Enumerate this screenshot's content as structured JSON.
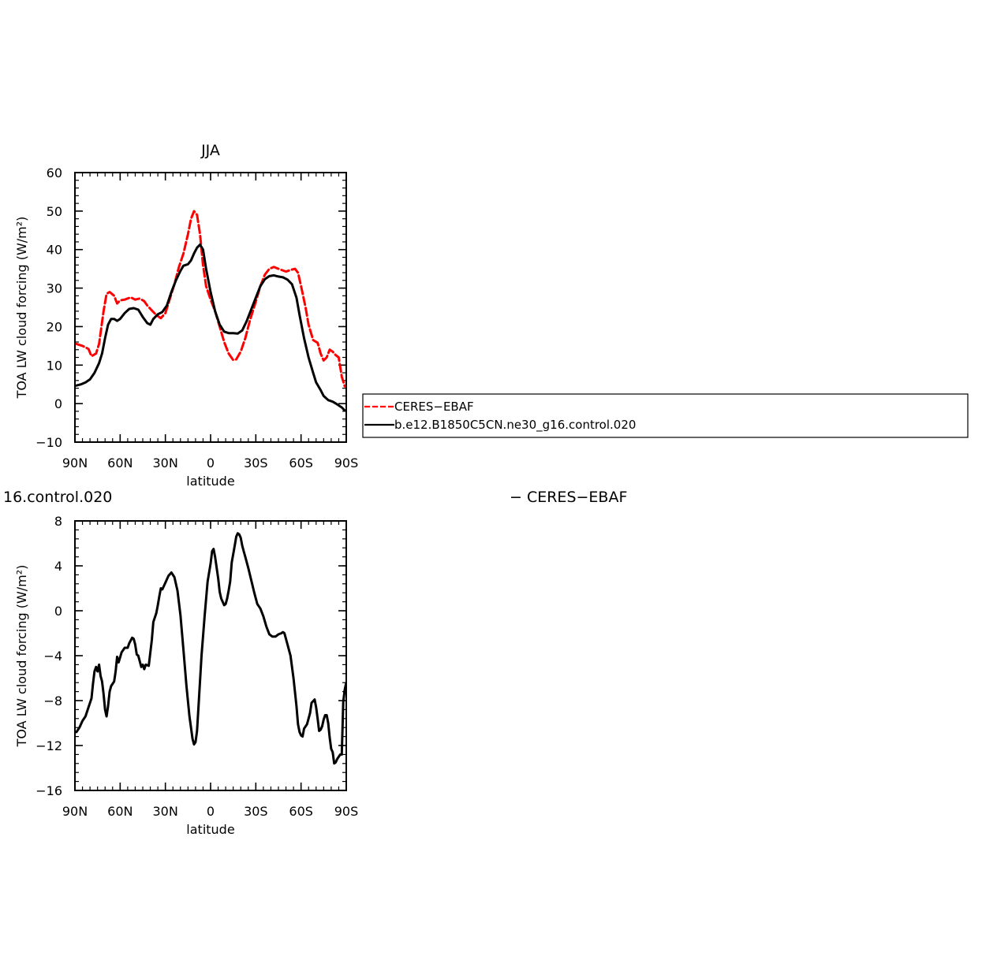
{
  "chart_data": [
    {
      "type": "line",
      "title": "JJA",
      "xlabel": "latitude",
      "ylabel": "TOA LW cloud forcing (W/m²)",
      "xlim": [
        90,
        -90
      ],
      "ylim": [
        -10,
        60
      ],
      "x_ticks": [
        90,
        60,
        30,
        0,
        -30,
        -60,
        -90
      ],
      "x_tick_labels": [
        "90N",
        "60N",
        "30N",
        "0",
        "30S",
        "60S",
        "90S"
      ],
      "y_ticks": [
        -10,
        0,
        10,
        20,
        30,
        40,
        50,
        60
      ],
      "y_tick_labels": [
        "−10",
        "0",
        "10",
        "20",
        "30",
        "40",
        "50",
        "60"
      ],
      "grid": false,
      "legend_placement": "right",
      "series": [
        {
          "name": "CERES−EBAF",
          "color": "#ff0000",
          "style": "dashed",
          "points": [
            [
              89,
              15.5
            ],
            [
              85,
              15
            ],
            [
              81,
              14.2
            ],
            [
              79,
              12.3
            ],
            [
              76,
              13
            ],
            [
              74,
              15.5
            ],
            [
              71,
              24
            ],
            [
              69,
              28.5
            ],
            [
              67,
              29
            ],
            [
              64,
              28
            ],
            [
              62,
              26
            ],
            [
              60,
              26.8
            ],
            [
              57,
              27
            ],
            [
              53,
              27.6
            ],
            [
              50,
              27
            ],
            [
              47,
              27.3
            ],
            [
              44,
              26.6
            ],
            [
              42,
              25.5
            ],
            [
              39,
              24.2
            ],
            [
              36,
              23
            ],
            [
              33,
              22.2
            ],
            [
              30,
              23.5
            ],
            [
              28,
              26
            ],
            [
              24,
              31
            ],
            [
              21,
              35.5
            ],
            [
              18,
              39
            ],
            [
              15,
              44
            ],
            [
              13,
              48
            ],
            [
              11,
              50
            ],
            [
              9,
              49
            ],
            [
              7,
              44
            ],
            [
              5,
              36
            ],
            [
              3,
              30.5
            ],
            [
              0,
              27
            ],
            [
              -3,
              24
            ],
            [
              -6,
              20
            ],
            [
              -9,
              16
            ],
            [
              -12,
              13
            ],
            [
              -15,
              11.3
            ],
            [
              -17,
              11.5
            ],
            [
              -20,
              13.5
            ],
            [
              -23,
              17
            ],
            [
              -26,
              21.5
            ],
            [
              -30,
              26.5
            ],
            [
              -33,
              30.5
            ],
            [
              -36,
              33.5
            ],
            [
              -39,
              35
            ],
            [
              -42,
              35.5
            ],
            [
              -45,
              35
            ],
            [
              -50,
              34.3
            ],
            [
              -53,
              34.7
            ],
            [
              -56,
              35
            ],
            [
              -58,
              34
            ],
            [
              -60,
              30.5
            ],
            [
              -63,
              25
            ],
            [
              -65,
              20.5
            ],
            [
              -68,
              16.5
            ],
            [
              -71,
              15.8
            ],
            [
              -73,
              13
            ],
            [
              -75,
              11.2
            ],
            [
              -77,
              12
            ],
            [
              -79,
              14
            ],
            [
              -81,
              13.5
            ],
            [
              -83,
              12.6
            ],
            [
              -85,
              12
            ],
            [
              -87,
              7
            ],
            [
              -89,
              4.5
            ]
          ]
        },
        {
          "name": "b.e12.B1850C5CN.ne30_g16.control.020",
          "color": "#000000",
          "style": "solid",
          "points": [
            [
              89,
              4.7
            ],
            [
              86,
              5
            ],
            [
              83,
              5.5
            ],
            [
              80,
              6.3
            ],
            [
              77,
              8
            ],
            [
              74,
              10.5
            ],
            [
              72,
              13
            ],
            [
              70,
              17
            ],
            [
              68,
              20.5
            ],
            [
              66,
              22
            ],
            [
              64,
              22
            ],
            [
              62,
              21.5
            ],
            [
              60,
              22
            ],
            [
              57,
              23.5
            ],
            [
              54,
              24.6
            ],
            [
              51,
              24.8
            ],
            [
              48,
              24.4
            ],
            [
              45,
              22.5
            ],
            [
              42,
              20.9
            ],
            [
              40,
              20.5
            ],
            [
              38,
              22
            ],
            [
              35,
              23.2
            ],
            [
              32,
              23.8
            ],
            [
              29,
              25.5
            ],
            [
              26,
              29
            ],
            [
              23,
              32
            ],
            [
              20,
              34.5
            ],
            [
              18,
              35.8
            ],
            [
              15,
              36.2
            ],
            [
              13,
              37.2
            ],
            [
              11,
              39
            ],
            [
              9,
              40.5
            ],
            [
              7,
              41.3
            ],
            [
              5,
              40
            ],
            [
              3,
              35
            ],
            [
              0,
              29
            ],
            [
              -3,
              24
            ],
            [
              -6,
              20.5
            ],
            [
              -9,
              18.7
            ],
            [
              -12,
              18.3
            ],
            [
              -15,
              18.3
            ],
            [
              -18,
              18.2
            ],
            [
              -21,
              19
            ],
            [
              -24,
              21.5
            ],
            [
              -27,
              24.5
            ],
            [
              -30,
              27.5
            ],
            [
              -33,
              30.5
            ],
            [
              -36,
              32.3
            ],
            [
              -39,
              33.1
            ],
            [
              -42,
              33.3
            ],
            [
              -45,
              33
            ],
            [
              -48,
              32.8
            ],
            [
              -51,
              32.2
            ],
            [
              -54,
              31
            ],
            [
              -57,
              27.5
            ],
            [
              -59,
              23
            ],
            [
              -62,
              17
            ],
            [
              -65,
              12
            ],
            [
              -68,
              8
            ],
            [
              -70,
              5.5
            ],
            [
              -73,
              3.5
            ],
            [
              -75,
              2
            ],
            [
              -78,
              0.9
            ],
            [
              -81,
              0.5
            ],
            [
              -84,
              -0.2
            ],
            [
              -87,
              -1
            ],
            [
              -89,
              -1.8
            ]
          ]
        }
      ]
    },
    {
      "type": "line",
      "title": "16.control.020",
      "title_right": "− CERES−EBAF",
      "xlabel": "latitude",
      "ylabel": "TOA LW cloud forcing (W/m²)",
      "xlim": [
        90,
        -90
      ],
      "ylim": [
        -16,
        8
      ],
      "x_ticks": [
        90,
        60,
        30,
        0,
        -30,
        -60,
        -90
      ],
      "x_tick_labels": [
        "90N",
        "60N",
        "30N",
        "0",
        "30S",
        "60S",
        "90S"
      ],
      "y_ticks": [
        -16,
        -12,
        -8,
        -4,
        0,
        4,
        8
      ],
      "y_tick_labels": [
        "−16",
        "−12",
        "−8",
        "−4",
        "0",
        "4",
        "8"
      ],
      "grid": false,
      "series": [
        {
          "color": "#000000",
          "style": "solid",
          "points": [
            [
              89,
              -10.8
            ],
            [
              87,
              -10.4
            ],
            [
              85,
              -9.8
            ],
            [
              83,
              -9.4
            ],
            [
              81,
              -8.6
            ],
            [
              79,
              -7.8
            ],
            [
              78,
              -6.5
            ],
            [
              77,
              -5.4
            ],
            [
              76,
              -5
            ],
            [
              75,
              -5.4
            ],
            [
              74,
              -4.8
            ],
            [
              73,
              -5.8
            ],
            [
              72,
              -6.3
            ],
            [
              71,
              -7.4
            ],
            [
              70,
              -8.8
            ],
            [
              69,
              -9.4
            ],
            [
              68,
              -8.5
            ],
            [
              67,
              -7.2
            ],
            [
              66,
              -6.7
            ],
            [
              64,
              -6.3
            ],
            [
              63,
              -5.4
            ],
            [
              62,
              -4.1
            ],
            [
              61,
              -4.6
            ],
            [
              59,
              -3.7
            ],
            [
              57,
              -3.3
            ],
            [
              55,
              -3.3
            ],
            [
              54,
              -2.9
            ],
            [
              52,
              -2.4
            ],
            [
              51,
              -2.5
            ],
            [
              50,
              -3
            ],
            [
              49,
              -3.9
            ],
            [
              48,
              -4
            ],
            [
              47,
              -4.5
            ],
            [
              46,
              -5
            ],
            [
              45,
              -4.8
            ],
            [
              44,
              -5.2
            ],
            [
              43,
              -4.8
            ],
            [
              41,
              -4.9
            ],
            [
              39,
              -2.6
            ],
            [
              38,
              -1
            ],
            [
              36,
              -0.2
            ],
            [
              35,
              0.5
            ],
            [
              34,
              1.3
            ],
            [
              33,
              2
            ],
            [
              32,
              1.9
            ],
            [
              30,
              2.5
            ],
            [
              28,
              3.1
            ],
            [
              26,
              3.4
            ],
            [
              24,
              3
            ],
            [
              22,
              1.8
            ],
            [
              20,
              -0.4
            ],
            [
              18,
              -3.5
            ],
            [
              16,
              -6.7
            ],
            [
              14,
              -9.4
            ],
            [
              12,
              -11.4
            ],
            [
              11,
              -11.9
            ],
            [
              10,
              -11.7
            ],
            [
              9,
              -10.7
            ],
            [
              8,
              -8.5
            ],
            [
              6,
              -4
            ],
            [
              4,
              -0.5
            ],
            [
              2,
              2.6
            ],
            [
              0,
              4.2
            ],
            [
              -1,
              5.3
            ],
            [
              -2,
              5.5
            ],
            [
              -3,
              4.8
            ],
            [
              -5,
              2.9
            ],
            [
              -6,
              1.7
            ],
            [
              -7,
              1.1
            ],
            [
              -9,
              0.5
            ],
            [
              -10,
              0.6
            ],
            [
              -11,
              1.1
            ],
            [
              -12,
              1.8
            ],
            [
              -13,
              2.6
            ],
            [
              -14,
              4.3
            ],
            [
              -16,
              5.8
            ],
            [
              -17,
              6.6
            ],
            [
              -18,
              6.9
            ],
            [
              -19,
              6.8
            ],
            [
              -20,
              6.5
            ],
            [
              -21,
              5.8
            ],
            [
              -22,
              5.3
            ],
            [
              -23,
              4.8
            ],
            [
              -25,
              3.8
            ],
            [
              -27,
              2.7
            ],
            [
              -29,
              1.6
            ],
            [
              -31,
              0.6
            ],
            [
              -33,
              0.2
            ],
            [
              -35,
              -0.5
            ],
            [
              -37,
              -1.4
            ],
            [
              -39,
              -2.1
            ],
            [
              -41,
              -2.3
            ],
            [
              -43,
              -2.3
            ],
            [
              -45,
              -2.1
            ],
            [
              -47,
              -2
            ],
            [
              -48,
              -1.9
            ],
            [
              -49,
              -2
            ],
            [
              -51,
              -3
            ],
            [
              -53,
              -4
            ],
            [
              -55,
              -6
            ],
            [
              -57,
              -8.5
            ],
            [
              -58,
              -10.1
            ],
            [
              -59,
              -10.8
            ],
            [
              -60,
              -11.1
            ],
            [
              -61,
              -11.2
            ],
            [
              -62,
              -10.5
            ],
            [
              -64,
              -10.1
            ],
            [
              -66,
              -9.1
            ],
            [
              -67,
              -8.2
            ],
            [
              -69,
              -7.9
            ],
            [
              -70,
              -8.6
            ],
            [
              -71,
              -9.6
            ],
            [
              -72,
              -10.7
            ],
            [
              -73,
              -10.6
            ],
            [
              -74,
              -10.3
            ],
            [
              -75,
              -9.7
            ],
            [
              -76,
              -9.3
            ],
            [
              -77,
              -9.3
            ],
            [
              -78,
              -10
            ],
            [
              -79,
              -11.3
            ],
            [
              -80,
              -12.3
            ],
            [
              -81,
              -12.6
            ],
            [
              -82,
              -13.6
            ],
            [
              -83,
              -13.5
            ],
            [
              -84,
              -13.2
            ],
            [
              -85,
              -13
            ],
            [
              -86,
              -12.8
            ],
            [
              -87,
              -12.8
            ],
            [
              -88,
              -8.1
            ],
            [
              -89,
              -7
            ],
            [
              -90,
              -6.4
            ]
          ]
        }
      ]
    }
  ]
}
